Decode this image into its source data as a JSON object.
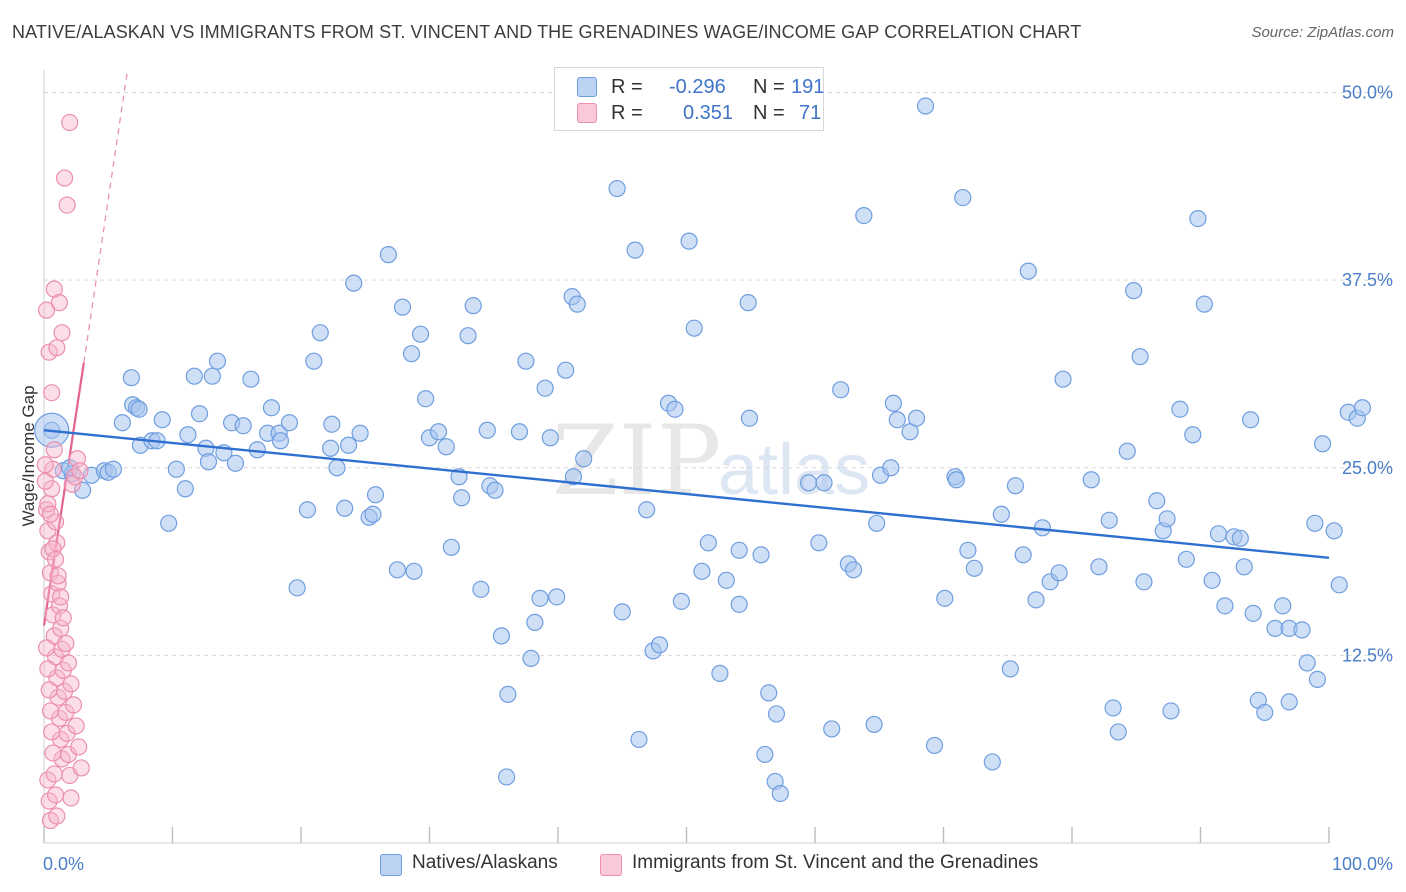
{
  "header": {
    "title": "NATIVE/ALASKAN VS IMMIGRANTS FROM ST. VINCENT AND THE GRENADINES WAGE/INCOME GAP CORRELATION CHART",
    "source": "Source: ZipAtlas.com"
  },
  "watermark": {
    "zip": "ZIP",
    "atlas": "atlas"
  },
  "legend": {
    "r_label": "R =",
    "n_label": "N =",
    "rows": [
      {
        "r": "-0.296",
        "n": "191"
      },
      {
        "r": "0.351",
        "n": "71"
      }
    ]
  },
  "bottom_legend": [
    "Natives/Alaskans",
    "Immigrants from St. Vincent and the Grenadines"
  ],
  "colors": {
    "blue_fill": "#a8c4ee",
    "blue_stroke": "#6f9ee0",
    "blue_line": "#2f6fd0",
    "pink_fill": "#f6b6cb",
    "pink_stroke": "#ec8fae",
    "pink_line": "#e3628f",
    "grid": "#d9d9d9",
    "tick_text": "#4a7ec8"
  },
  "chart_data": {
    "type": "scatter",
    "title": "NATIVE/ALASKAN VS IMMIGRANTS FROM ST. VINCENT AND THE GRENADINES WAGE/INCOME GAP CORRELATION CHART",
    "xlabel": "",
    "ylabel": "Wage/Income Gap",
    "xlim": [
      0,
      100
    ],
    "ylim": [
      0,
      51.5
    ],
    "x_tick_labels": [
      "0.0%",
      "100.0%"
    ],
    "y_ticks": [
      12.5,
      25.0,
      37.5,
      50.0
    ],
    "y_tick_labels": [
      "12.5%",
      "25.0%",
      "37.5%",
      "50.0%"
    ],
    "grid": "horizontal dashed",
    "legend_position": "top-center",
    "series": [
      {
        "name": "Natives/Alaskans",
        "R": -0.296,
        "N": 191,
        "trend": {
          "x": [
            0,
            100
          ],
          "y": [
            27.5,
            19.0
          ]
        },
        "points": [
          [
            0.6,
            27.5
          ],
          [
            1.5,
            24.8
          ],
          [
            2.2,
            24.6
          ],
          [
            3.0,
            23.5
          ],
          [
            2.0,
            25.0
          ],
          [
            3.7,
            24.5
          ],
          [
            4.7,
            24.8
          ],
          [
            5.0,
            24.7
          ],
          [
            5.4,
            24.9
          ],
          [
            6.1,
            28.0
          ],
          [
            6.9,
            29.2
          ],
          [
            7.2,
            29.0
          ],
          [
            7.4,
            28.9
          ],
          [
            6.8,
            31.0
          ],
          [
            7.5,
            26.5
          ],
          [
            8.4,
            26.8
          ],
          [
            9.2,
            28.2
          ],
          [
            8.8,
            26.8
          ],
          [
            9.7,
            21.3
          ],
          [
            10.3,
            24.9
          ],
          [
            11.2,
            27.2
          ],
          [
            11.0,
            23.6
          ],
          [
            11.7,
            31.1
          ],
          [
            12.1,
            28.6
          ],
          [
            12.6,
            26.3
          ],
          [
            12.8,
            25.4
          ],
          [
            13.1,
            31.1
          ],
          [
            13.5,
            32.1
          ],
          [
            14.0,
            26.0
          ],
          [
            14.6,
            28.0
          ],
          [
            14.9,
            25.3
          ],
          [
            15.5,
            27.8
          ],
          [
            16.1,
            30.9
          ],
          [
            16.6,
            26.2
          ],
          [
            17.4,
            27.3
          ],
          [
            17.7,
            29.0
          ],
          [
            18.3,
            27.3
          ],
          [
            18.4,
            26.8
          ],
          [
            19.1,
            28.0
          ],
          [
            19.7,
            17.0
          ],
          [
            20.5,
            22.2
          ],
          [
            21.0,
            32.1
          ],
          [
            21.5,
            34.0
          ],
          [
            22.3,
            26.3
          ],
          [
            22.4,
            27.9
          ],
          [
            22.8,
            25.0
          ],
          [
            23.4,
            22.3
          ],
          [
            23.7,
            26.5
          ],
          [
            24.1,
            37.3
          ],
          [
            24.6,
            27.3
          ],
          [
            25.3,
            21.7
          ],
          [
            25.8,
            23.2
          ],
          [
            25.6,
            21.9
          ],
          [
            26.8,
            39.2
          ],
          [
            27.5,
            18.2
          ],
          [
            27.9,
            35.7
          ],
          [
            28.6,
            32.6
          ],
          [
            28.8,
            18.1
          ],
          [
            29.3,
            33.9
          ],
          [
            29.7,
            29.6
          ],
          [
            30.0,
            27.0
          ],
          [
            30.7,
            27.4
          ],
          [
            31.3,
            26.4
          ],
          [
            31.7,
            19.7
          ],
          [
            32.3,
            24.4
          ],
          [
            32.5,
            23.0
          ],
          [
            33.0,
            33.8
          ],
          [
            33.4,
            35.8
          ],
          [
            34.0,
            16.9
          ],
          [
            34.5,
            27.5
          ],
          [
            34.7,
            23.8
          ],
          [
            35.1,
            23.5
          ],
          [
            35.6,
            13.8
          ],
          [
            36.1,
            9.9
          ],
          [
            36.0,
            4.4
          ],
          [
            37.0,
            27.4
          ],
          [
            37.5,
            32.1
          ],
          [
            37.9,
            12.3
          ],
          [
            38.2,
            14.7
          ],
          [
            38.6,
            16.3
          ],
          [
            39.0,
            30.3
          ],
          [
            39.4,
            27.0
          ],
          [
            39.9,
            16.4
          ],
          [
            40.6,
            31.5
          ],
          [
            41.1,
            36.4
          ],
          [
            41.5,
            35.9
          ],
          [
            41.2,
            24.4
          ],
          [
            42.0,
            25.6
          ],
          [
            44.6,
            43.6
          ],
          [
            45.0,
            15.4
          ],
          [
            46.0,
            39.5
          ],
          [
            46.3,
            6.9
          ],
          [
            46.9,
            22.2
          ],
          [
            47.4,
            12.8
          ],
          [
            47.9,
            13.2
          ],
          [
            48.6,
            29.3
          ],
          [
            49.1,
            28.9
          ],
          [
            49.6,
            16.1
          ],
          [
            50.2,
            40.1
          ],
          [
            50.6,
            34.3
          ],
          [
            51.2,
            18.1
          ],
          [
            51.7,
            20.0
          ],
          [
            52.6,
            11.3
          ],
          [
            53.1,
            17.5
          ],
          [
            54.1,
            15.9
          ],
          [
            54.1,
            19.5
          ],
          [
            54.8,
            36.0
          ],
          [
            54.9,
            28.3
          ],
          [
            55.8,
            19.2
          ],
          [
            56.1,
            5.9
          ],
          [
            56.4,
            10.0
          ],
          [
            56.9,
            4.1
          ],
          [
            57.3,
            3.3
          ],
          [
            57.0,
            8.6
          ],
          [
            59.5,
            24.0
          ],
          [
            60.3,
            20.0
          ],
          [
            60.7,
            24.0
          ],
          [
            61.3,
            7.6
          ],
          [
            62.0,
            30.2
          ],
          [
            62.6,
            18.6
          ],
          [
            63.0,
            18.2
          ],
          [
            63.8,
            41.8
          ],
          [
            64.6,
            7.9
          ],
          [
            64.8,
            21.3
          ],
          [
            65.1,
            24.5
          ],
          [
            65.9,
            25.0
          ],
          [
            66.1,
            29.3
          ],
          [
            66.4,
            28.2
          ],
          [
            67.4,
            27.4
          ],
          [
            67.9,
            28.3
          ],
          [
            68.6,
            49.1
          ],
          [
            69.3,
            6.5
          ],
          [
            70.1,
            16.3
          ],
          [
            70.9,
            24.4
          ],
          [
            71.0,
            24.2
          ],
          [
            71.5,
            43.0
          ],
          [
            71.9,
            19.5
          ],
          [
            72.4,
            18.3
          ],
          [
            73.8,
            5.4
          ],
          [
            74.5,
            21.9
          ],
          [
            75.2,
            11.6
          ],
          [
            75.6,
            23.8
          ],
          [
            76.2,
            19.2
          ],
          [
            76.6,
            38.1
          ],
          [
            77.2,
            16.2
          ],
          [
            77.7,
            21.0
          ],
          [
            78.3,
            17.4
          ],
          [
            79.3,
            30.9
          ],
          [
            79.0,
            18.0
          ],
          [
            81.5,
            24.2
          ],
          [
            82.1,
            18.4
          ],
          [
            82.9,
            21.5
          ],
          [
            83.2,
            9.0
          ],
          [
            83.6,
            7.4
          ],
          [
            84.3,
            26.1
          ],
          [
            84.8,
            36.8
          ],
          [
            85.3,
            32.4
          ],
          [
            85.6,
            17.4
          ],
          [
            86.6,
            22.8
          ],
          [
            87.1,
            20.8
          ],
          [
            87.4,
            21.6
          ],
          [
            87.7,
            8.8
          ],
          [
            88.4,
            28.9
          ],
          [
            88.9,
            18.9
          ],
          [
            89.4,
            27.2
          ],
          [
            89.8,
            41.6
          ],
          [
            90.3,
            35.9
          ],
          [
            90.9,
            17.5
          ],
          [
            91.4,
            20.6
          ],
          [
            91.9,
            15.8
          ],
          [
            92.6,
            20.4
          ],
          [
            93.1,
            20.3
          ],
          [
            93.4,
            18.4
          ],
          [
            93.9,
            28.2
          ],
          [
            94.1,
            15.3
          ],
          [
            94.5,
            9.5
          ],
          [
            95.0,
            8.7
          ],
          [
            95.8,
            14.3
          ],
          [
            96.4,
            15.8
          ],
          [
            96.9,
            14.3
          ],
          [
            96.9,
            9.4
          ],
          [
            97.9,
            14.2
          ],
          [
            98.3,
            12.0
          ],
          [
            98.9,
            21.3
          ],
          [
            99.1,
            10.9
          ],
          [
            99.5,
            26.6
          ],
          [
            100.4,
            20.8
          ],
          [
            100.8,
            17.2
          ],
          [
            101.5,
            28.7
          ],
          [
            102.2,
            28.3
          ],
          [
            102.6,
            29.0
          ]
        ]
      },
      {
        "name": "Immigrants from St. Vincent and the Grenadines",
        "R": 0.351,
        "N": 71,
        "trend": {
          "x": [
            0.0,
            3.1
          ],
          "y": [
            14.5,
            32.0
          ]
        },
        "trend_extended": {
          "x": [
            3.1,
            6.5
          ],
          "y": [
            32.0,
            51.5
          ]
        },
        "points": [
          [
            0.2,
            22.2
          ],
          [
            0.3,
            20.8
          ],
          [
            0.4,
            19.4
          ],
          [
            0.5,
            18.0
          ],
          [
            0.6,
            16.6
          ],
          [
            0.7,
            15.2
          ],
          [
            0.8,
            13.8
          ],
          [
            0.9,
            12.4
          ],
          [
            1.0,
            11.0
          ],
          [
            1.1,
            9.7
          ],
          [
            1.2,
            8.3
          ],
          [
            1.3,
            6.9
          ],
          [
            1.4,
            5.6
          ],
          [
            0.3,
            4.2
          ],
          [
            0.4,
            2.8
          ],
          [
            0.5,
            1.5
          ],
          [
            0.6,
            23.6
          ],
          [
            0.7,
            24.9
          ],
          [
            0.8,
            26.2
          ],
          [
            0.9,
            21.4
          ],
          [
            1.0,
            20.0
          ],
          [
            1.1,
            17.3
          ],
          [
            1.2,
            15.8
          ],
          [
            1.3,
            14.3
          ],
          [
            1.4,
            12.9
          ],
          [
            1.5,
            11.5
          ],
          [
            1.6,
            10.1
          ],
          [
            1.7,
            8.7
          ],
          [
            1.8,
            7.3
          ],
          [
            1.9,
            5.9
          ],
          [
            2.0,
            4.5
          ],
          [
            2.1,
            3.0
          ],
          [
            0.2,
            13.0
          ],
          [
            0.3,
            11.6
          ],
          [
            0.4,
            10.2
          ],
          [
            0.5,
            8.8
          ],
          [
            0.6,
            7.4
          ],
          [
            0.7,
            6.0
          ],
          [
            0.8,
            4.6
          ],
          [
            0.9,
            3.2
          ],
          [
            1.0,
            1.8
          ],
          [
            0.2,
            35.5
          ],
          [
            0.4,
            32.7
          ],
          [
            0.6,
            30.0
          ],
          [
            0.8,
            36.9
          ],
          [
            1.0,
            33.0
          ],
          [
            1.2,
            36.0
          ],
          [
            1.4,
            34.0
          ],
          [
            1.6,
            44.3
          ],
          [
            1.8,
            42.5
          ],
          [
            2.0,
            48.0
          ],
          [
            2.2,
            23.9
          ],
          [
            2.4,
            24.4
          ],
          [
            2.6,
            25.6
          ],
          [
            2.8,
            24.8
          ],
          [
            0.1,
            24.1
          ],
          [
            0.3,
            22.6
          ],
          [
            0.5,
            21.9
          ],
          [
            0.7,
            19.6
          ],
          [
            0.9,
            18.9
          ],
          [
            1.1,
            17.8
          ],
          [
            1.3,
            16.4
          ],
          [
            1.5,
            15.0
          ],
          [
            1.7,
            13.3
          ],
          [
            1.9,
            12.0
          ],
          [
            2.1,
            10.6
          ],
          [
            2.3,
            9.2
          ],
          [
            2.5,
            7.8
          ],
          [
            2.7,
            6.4
          ],
          [
            2.9,
            5.0
          ],
          [
            0.1,
            25.2
          ]
        ]
      }
    ]
  }
}
